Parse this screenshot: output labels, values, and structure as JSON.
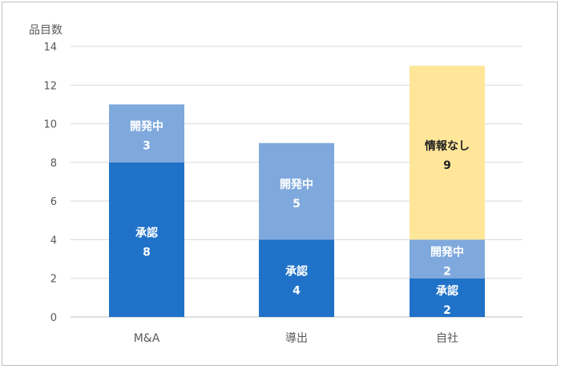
{
  "chart_data": {
    "type": "bar",
    "stacked": true,
    "ylabel": "品目数",
    "xlabel": "",
    "ylim": [
      0,
      14
    ],
    "yticks": [
      0,
      2,
      4,
      6,
      8,
      10,
      12,
      14
    ],
    "grid": true,
    "categories": [
      "M&A",
      "導出",
      "自社"
    ],
    "series": [
      {
        "name": "承認",
        "values": [
          8,
          4,
          2
        ],
        "color": "#1f72c8",
        "label_color": "#ffffff"
      },
      {
        "name": "開発中",
        "values": [
          3,
          5,
          2
        ],
        "color": "#7fa9dd",
        "label_color": "#ffffff"
      },
      {
        "name": "情報なし",
        "values": [
          0,
          0,
          9
        ],
        "color": "#ffe699",
        "label_color": "#222222"
      }
    ]
  }
}
